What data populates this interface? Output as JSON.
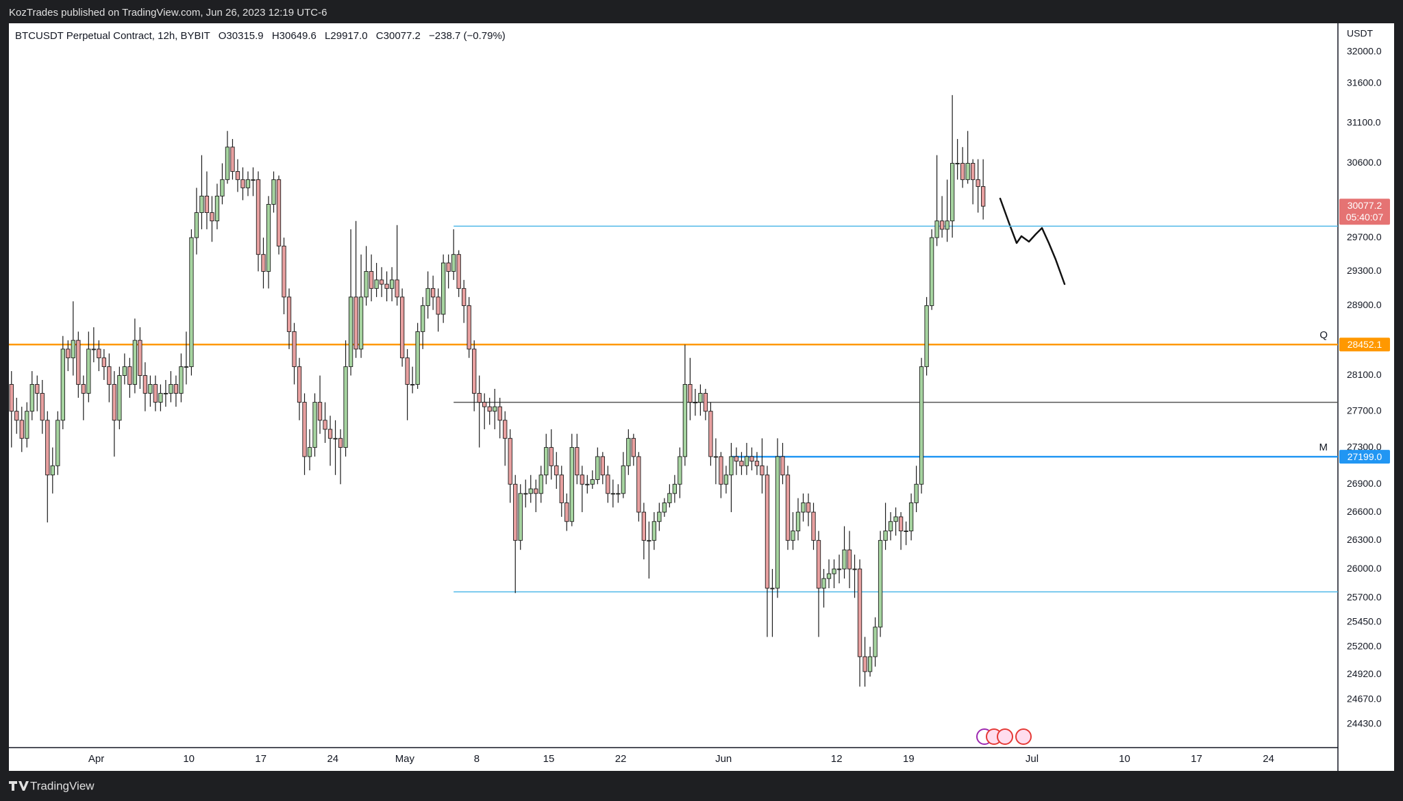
{
  "publisher_line": "KozTrades published on TradingView.com, Jun 26, 2023 12:19 UTC-6",
  "brand": "TradingView",
  "chart_data": {
    "type": "candlestick",
    "title": "BTCUSDT Perpetual Contract, 12h, BYBIT",
    "legend_values": [
      "O30315.9",
      "H30649.6",
      "L29917.0",
      "C30077.2",
      "−238.7 (−0.79%)"
    ],
    "currency": "USDT",
    "countdown": "05:40:07",
    "log_scale": true,
    "grid": false,
    "up_color": "#a6d4a0",
    "down_color": "#e8a0a0",
    "wick_color": "#1a1a1a",
    "last_tag_color": "#e57373",
    "open": [
      28000,
      27700,
      27600,
      27400,
      27700,
      28000,
      27900,
      27600,
      27000,
      27100,
      27600,
      28400,
      28300,
      28500,
      28000,
      27900,
      28400,
      28400,
      28300,
      28200,
      28000,
      27600,
      28100,
      28200,
      28000,
      28500,
      28100,
      27900,
      28000,
      27800,
      27900,
      27900,
      28000,
      27900,
      28200,
      28200,
      29700,
      30000,
      30200,
      30000,
      29900,
      30200,
      30400,
      30800,
      30500,
      30400,
      30300,
      30400,
      30400,
      29500,
      29300,
      30100,
      30400,
      29600,
      29000,
      28600,
      28200,
      27800,
      27200,
      27300,
      27800,
      27600,
      27500,
      27400,
      27400,
      27300,
      28200,
      29000,
      28400,
      29000,
      29300,
      29100,
      29200,
      29150,
      29100,
      29200,
      29000,
      28300,
      28000,
      28000,
      28600,
      28900,
      29100,
      29000,
      28800,
      29400,
      29300,
      29500,
      29100,
      28900,
      28400,
      27900,
      27800,
      27750,
      27700,
      27750,
      27600,
      27400,
      26900,
      26300,
      26800,
      26800,
      26850,
      26800,
      27000,
      27300,
      27100,
      27000,
      26700,
      26500,
      27300,
      27000,
      26900,
      26900,
      26950,
      27200,
      27000,
      26800,
      26800,
      26800,
      27100,
      27400,
      27200,
      26600,
      26300,
      26300,
      26500,
      26600,
      26700,
      26800,
      26900,
      27200,
      28000,
      27800,
      27800,
      27900,
      27700,
      27200,
      27200,
      26900,
      27000,
      27200,
      27150,
      27100,
      27200,
      27150,
      27100,
      27000,
      25800,
      25800,
      27200,
      27000,
      26300,
      26400,
      26600,
      26700,
      26600,
      26300,
      25800,
      25900,
      25950,
      26000,
      26000,
      26200,
      26000,
      26000,
      25100,
      24950,
      25100,
      25400,
      26300,
      26400,
      26500,
      26550,
      26400,
      26400,
      26700,
      26900,
      28200,
      28900,
      29700,
      29900,
      29800,
      29900,
      30600,
      30600,
      30400,
      30600,
      30400,
      30315.9
    ],
    "high": [
      28150,
      27850,
      27750,
      27800,
      28150,
      28100,
      28050,
      27700,
      27300,
      27700,
      28550,
      28500,
      28950,
      28600,
      28100,
      28600,
      28650,
      28500,
      28400,
      28350,
      28150,
      28200,
      28350,
      28300,
      28750,
      28650,
      28250,
      28100,
      28100,
      28000,
      28050,
      28150,
      28100,
      28350,
      28600,
      29800,
      30300,
      30700,
      30500,
      30200,
      30350,
      30600,
      31000,
      30900,
      30650,
      30550,
      30500,
      30550,
      30500,
      29700,
      30200,
      30500,
      30450,
      29700,
      29100,
      28700,
      28300,
      27900,
      27500,
      27900,
      28100,
      27800,
      27650,
      27600,
      27500,
      28500,
      29800,
      29900,
      29500,
      29600,
      29500,
      29400,
      29350,
      29300,
      29350,
      29850,
      29100,
      28400,
      28200,
      28700,
      29000,
      29300,
      29250,
      29100,
      29500,
      29500,
      29800,
      29550,
      29200,
      29000,
      28500,
      28100,
      27900,
      27850,
      27950,
      27850,
      27700,
      27500,
      27000,
      26900,
      26950,
      27000,
      26950,
      27100,
      27450,
      27500,
      27250,
      27100,
      26800,
      27450,
      27450,
      27100,
      27000,
      27050,
      27300,
      27250,
      27100,
      26950,
      26900,
      27250,
      27500,
      27450,
      27250,
      26700,
      26500,
      26600,
      26700,
      26750,
      26900,
      27000,
      27300,
      28450,
      28300,
      27950,
      28000,
      27950,
      27800,
      27400,
      27250,
      27100,
      27350,
      27300,
      27250,
      27350,
      27300,
      27250,
      27400,
      27100,
      26000,
      27400,
      27350,
      27100,
      26600,
      26750,
      26800,
      26800,
      26700,
      26400,
      26000,
      26100,
      26100,
      26150,
      26450,
      26400,
      26150,
      26100,
      25300,
      25200,
      25500,
      26400,
      26700,
      26600,
      26650,
      26600,
      26500,
      26800,
      27100,
      28300,
      29000,
      29800,
      30700,
      30200,
      30400,
      31450,
      30900,
      30800,
      31000,
      30650,
      30650,
      30649.6
    ],
    "low": [
      27300,
      27450,
      27250,
      27300,
      27600,
      27700,
      27450,
      26490,
      26800,
      27000,
      27500,
      28150,
      28100,
      27850,
      27600,
      27800,
      28250,
      28150,
      28050,
      27800,
      27200,
      27500,
      28000,
      27850,
      27900,
      27950,
      27700,
      27750,
      27700,
      27700,
      27750,
      27800,
      27750,
      27800,
      28000,
      28100,
      29500,
      29800,
      29800,
      29650,
      29800,
      30100,
      30350,
      30400,
      30250,
      30150,
      30200,
      30200,
      29300,
      29100,
      29100,
      30000,
      29500,
      28800,
      28400,
      28000,
      27600,
      27000,
      27050,
      27200,
      27450,
      27350,
      27100,
      27000,
      26900,
      27200,
      28100,
      28300,
      28300,
      28900,
      28950,
      29000,
      29000,
      28950,
      28950,
      28900,
      28200,
      27600,
      27900,
      27950,
      28400,
      28750,
      28850,
      28600,
      28700,
      29100,
      29200,
      29000,
      28700,
      28300,
      27700,
      27300,
      27500,
      27550,
      27500,
      27400,
      27100,
      26700,
      25750,
      26200,
      26650,
      26700,
      26600,
      26700,
      26900,
      26950,
      26850,
      26550,
      26400,
      26450,
      26900,
      26600,
      26800,
      26850,
      26900,
      26900,
      26700,
      26650,
      26700,
      26750,
      27000,
      27100,
      26500,
      26100,
      25900,
      26200,
      26400,
      26550,
      26650,
      26700,
      26750,
      27100,
      27600,
      27650,
      27650,
      27600,
      27100,
      26900,
      26750,
      26800,
      26600,
      27000,
      27000,
      27000,
      27050,
      27000,
      26800,
      25300,
      25300,
      25700,
      26900,
      26200,
      26200,
      26300,
      26500,
      26450,
      26200,
      25300,
      25600,
      25800,
      25800,
      25850,
      25900,
      25800,
      25700,
      24800,
      24800,
      24900,
      25000,
      25300,
      26200,
      26300,
      26350,
      26200,
      26250,
      26300,
      26600,
      26800,
      28100,
      28850,
      29600,
      29700,
      29650,
      29700,
      30400,
      30300,
      30350,
      30100,
      30000,
      29917.0
    ],
    "close": [
      27700,
      27600,
      27400,
      27700,
      28000,
      27900,
      27600,
      27000,
      27100,
      27600,
      28400,
      28300,
      28500,
      28000,
      27900,
      28400,
      28400,
      28300,
      28200,
      28000,
      27600,
      28100,
      28200,
      28000,
      28500,
      28100,
      27900,
      28000,
      27800,
      27900,
      27900,
      28000,
      27900,
      28200,
      28200,
      29700,
      30000,
      30200,
      30000,
      29900,
      30200,
      30400,
      30800,
      30500,
      30400,
      30300,
      30400,
      30400,
      29500,
      29300,
      30100,
      30400,
      29600,
      29000,
      28600,
      28200,
      27800,
      27200,
      27300,
      27800,
      27600,
      27500,
      27400,
      27400,
      27300,
      28200,
      29000,
      28400,
      29000,
      29300,
      29100,
      29200,
      29150,
      29100,
      29200,
      29000,
      28300,
      28000,
      28000,
      28600,
      28900,
      29100,
      29000,
      28800,
      29400,
      29300,
      29500,
      29100,
      28900,
      28400,
      27900,
      27800,
      27750,
      27700,
      27750,
      27600,
      27400,
      26900,
      26300,
      26800,
      26800,
      26850,
      26800,
      27000,
      27300,
      27100,
      27000,
      26700,
      26500,
      27300,
      27000,
      26900,
      26900,
      26950,
      27200,
      27000,
      26800,
      26800,
      26800,
      27100,
      27400,
      27200,
      26600,
      26300,
      26300,
      26500,
      26600,
      26700,
      26800,
      26900,
      27200,
      28000,
      27800,
      27800,
      27900,
      27700,
      27200,
      27200,
      26900,
      27000,
      27200,
      27150,
      27100,
      27200,
      27150,
      27100,
      27000,
      25800,
      25800,
      27200,
      27000,
      26300,
      26400,
      26600,
      26700,
      26600,
      26300,
      25800,
      25900,
      25950,
      26000,
      26000,
      26200,
      26000,
      26000,
      25100,
      24950,
      25100,
      25400,
      26300,
      26400,
      26500,
      26550,
      26400,
      26400,
      26700,
      26900,
      28200,
      28900,
      29700,
      29900,
      29800,
      29900,
      30600,
      30600,
      30400,
      30600,
      30400,
      30315.9,
      30077.2
    ],
    "xlim": [
      -0.5,
      258
    ],
    "xticks": [
      {
        "value": 16.5,
        "label": "Apr"
      },
      {
        "value": 34.5,
        "label": "10"
      },
      {
        "value": 48.5,
        "label": "17"
      },
      {
        "value": 62.5,
        "label": "24"
      },
      {
        "value": 76.5,
        "label": "May"
      },
      {
        "value": 90.5,
        "label": "8"
      },
      {
        "value": 104.5,
        "label": "15"
      },
      {
        "value": 118.5,
        "label": "22"
      },
      {
        "value": 138.5,
        "label": "Jun"
      },
      {
        "value": 160.5,
        "label": "12"
      },
      {
        "value": 174.5,
        "label": "19"
      },
      {
        "value": 198.5,
        "label": "Jul"
      },
      {
        "value": 216.5,
        "label": "10"
      },
      {
        "value": 230.5,
        "label": "17"
      },
      {
        "value": 244.5,
        "label": "24"
      }
    ],
    "ylim": [
      24200,
      32370
    ],
    "yticks": [
      {
        "value": 32000,
        "label": "32000.0"
      },
      {
        "value": 31600,
        "label": "31600.0"
      },
      {
        "value": 31100,
        "label": "31100.0"
      },
      {
        "value": 30600,
        "label": "30600.0"
      },
      {
        "value": 29700,
        "label": "29700.0"
      },
      {
        "value": 29300,
        "label": "29300.0"
      },
      {
        "value": 28900,
        "label": "28900.0"
      },
      {
        "value": 28100,
        "label": "28100.0"
      },
      {
        "value": 27700,
        "label": "27700.0"
      },
      {
        "value": 27300,
        "label": "27300.0"
      },
      {
        "value": 26900,
        "label": "26900.0"
      },
      {
        "value": 26600,
        "label": "26600.0"
      },
      {
        "value": 26300,
        "label": "26300.0"
      },
      {
        "value": 26000,
        "label": "26000.0"
      },
      {
        "value": 25700,
        "label": "25700.0"
      },
      {
        "value": 25450,
        "label": "25450.0"
      },
      {
        "value": 25200,
        "label": "25200.0"
      },
      {
        "value": 24920,
        "label": "24920.0"
      },
      {
        "value": 24670,
        "label": "24670.0"
      },
      {
        "value": 24430,
        "label": "24430.0"
      }
    ],
    "levels": [
      {
        "name": "Q",
        "value": 28452.1,
        "value_label": "28452.1",
        "color": "#ff9800",
        "from": -0.5
      },
      {
        "name": "M",
        "value": 27199,
        "value_label": "27199.0",
        "color": "#2196f3",
        "from": 140
      }
    ],
    "lines": [
      {
        "value": 29837,
        "color": "#4fb8e8",
        "from": 86
      },
      {
        "value": 27800,
        "color": "#555555",
        "from": 86
      },
      {
        "value": 25762,
        "color": "#4fb8e8",
        "from": 86
      }
    ]
  }
}
